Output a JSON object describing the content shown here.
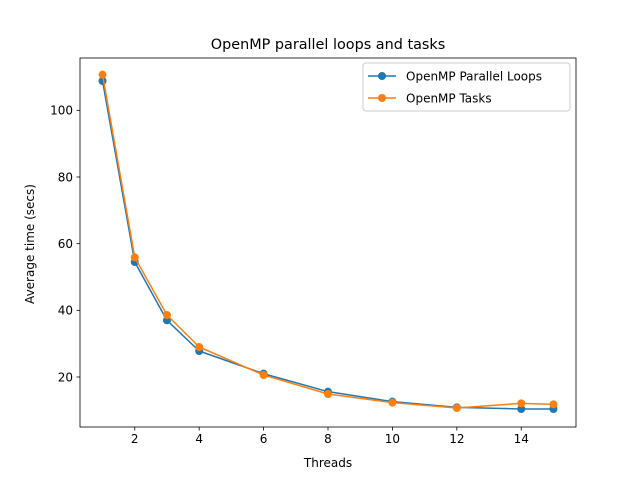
{
  "chart_data": {
    "type": "line",
    "title": "OpenMP parallel loops and tasks",
    "xlabel": "Threads",
    "ylabel": "Average time (secs)",
    "xlim": [
      0.3,
      15.7
    ],
    "ylim": [
      5.0,
      115.7
    ],
    "xticks": [
      2,
      4,
      6,
      8,
      10,
      12,
      14
    ],
    "yticks": [
      20,
      40,
      60,
      80,
      100
    ],
    "grid": false,
    "legend_position": "top-right",
    "x": [
      1,
      2,
      3,
      4,
      6,
      8,
      10,
      12,
      14,
      15
    ],
    "series": [
      {
        "name": "OpenMP Parallel Loops",
        "color": "#1f77b4",
        "marker": "circle",
        "values": [
          108.8,
          54.5,
          37.0,
          27.8,
          21.0,
          15.6,
          12.6,
          10.9,
          10.4,
          10.4
        ]
      },
      {
        "name": "OpenMP Tasks",
        "color": "#ff7f0e",
        "marker": "circle",
        "values": [
          110.7,
          55.9,
          38.6,
          29.0,
          20.6,
          14.9,
          12.3,
          10.7,
          12.1,
          11.8
        ]
      }
    ]
  }
}
